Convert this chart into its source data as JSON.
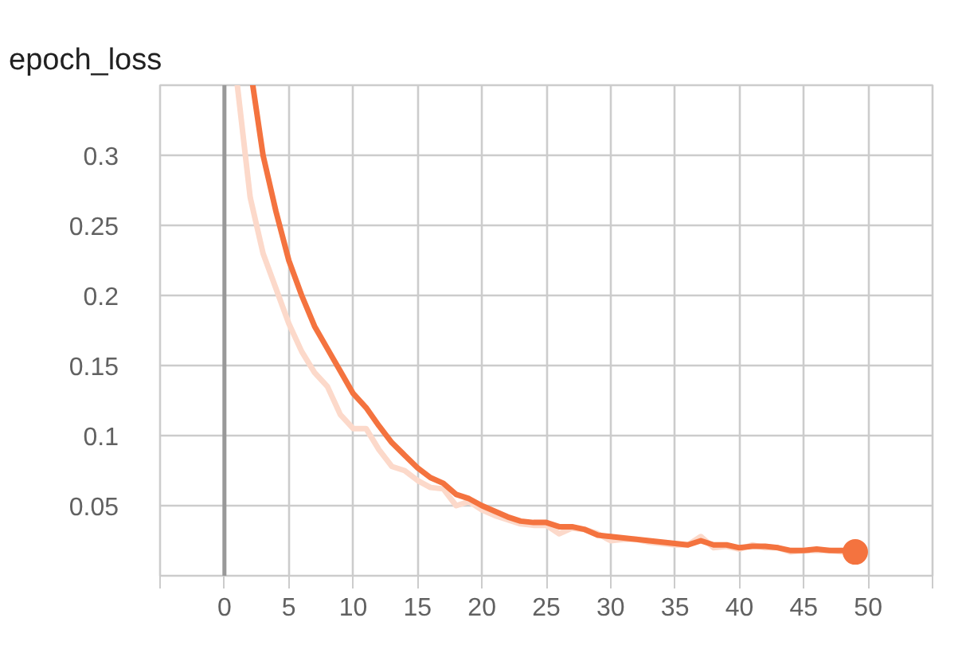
{
  "chart_data": {
    "type": "line",
    "title": "epoch_loss",
    "xlim": [
      -5,
      55
    ],
    "xticks": [
      {
        "value": -5,
        "label": null
      },
      0,
      5,
      10,
      15,
      20,
      25,
      30,
      35,
      40,
      45,
      50,
      {
        "value": 55,
        "label": null
      }
    ],
    "ylim": [
      0,
      0.35
    ],
    "yticks": [
      {
        "value": 0,
        "label": null
      },
      0.05,
      0.1,
      0.15,
      0.2,
      0.25,
      0.3
    ],
    "grid": true,
    "ref_lines": [
      {
        "axis": "x",
        "value": 0,
        "color": "#999999"
      }
    ],
    "series": [
      {
        "color": "#fcd9ca",
        "x": [
          1,
          2,
          3,
          4,
          5,
          6,
          7,
          8,
          9,
          10,
          11,
          12,
          13,
          14,
          15,
          16,
          17,
          18,
          19,
          20,
          21,
          22,
          23,
          24,
          25,
          26,
          27,
          28,
          29,
          30,
          31,
          32,
          33,
          34,
          35,
          36,
          37,
          38,
          39,
          40,
          41,
          42,
          43,
          44,
          45,
          46,
          47,
          48
        ],
        "values": [
          0.35,
          0.27,
          0.23,
          0.205,
          0.18,
          0.16,
          0.145,
          0.135,
          0.115,
          0.105,
          0.105,
          0.09,
          0.078,
          0.075,
          0.068,
          0.063,
          0.062,
          0.05,
          0.053,
          0.047,
          0.043,
          0.04,
          0.037,
          0.036,
          0.036,
          0.03,
          0.034,
          0.033,
          0.03,
          0.025,
          0.026,
          0.026,
          0.024,
          0.023,
          0.022,
          0.022,
          0.028,
          0.02,
          0.021,
          0.019,
          0.022,
          0.02,
          0.02,
          0.017,
          0.018,
          0.018,
          0.018,
          0.017
        ]
      },
      {
        "color": "#f4733f",
        "x": [
          2.2,
          3,
          4,
          5,
          6,
          7,
          8,
          9,
          10,
          11,
          12,
          13,
          14,
          15,
          16,
          17,
          18,
          19,
          20,
          21,
          22,
          23,
          24,
          25,
          26,
          27,
          28,
          29,
          30,
          31,
          32,
          33,
          34,
          35,
          36,
          37,
          38,
          39,
          40,
          41,
          42,
          43,
          44,
          45,
          46,
          47,
          48,
          49
        ],
        "values": [
          0.35,
          0.3,
          0.26,
          0.225,
          0.2,
          0.178,
          0.162,
          0.146,
          0.13,
          0.12,
          0.107,
          0.095,
          0.086,
          0.077,
          0.07,
          0.066,
          0.058,
          0.055,
          0.05,
          0.046,
          0.042,
          0.039,
          0.038,
          0.038,
          0.035,
          0.035,
          0.033,
          0.029,
          0.028,
          0.027,
          0.026,
          0.025,
          0.024,
          0.023,
          0.022,
          0.025,
          0.022,
          0.022,
          0.02,
          0.021,
          0.021,
          0.02,
          0.018,
          0.018,
          0.019,
          0.018,
          0.018,
          0.017
        ]
      },
      {
        "type": "scatter",
        "marker": "circle",
        "color": "#f4733f",
        "x": [
          49
        ],
        "values": [
          0.017
        ]
      }
    ]
  }
}
